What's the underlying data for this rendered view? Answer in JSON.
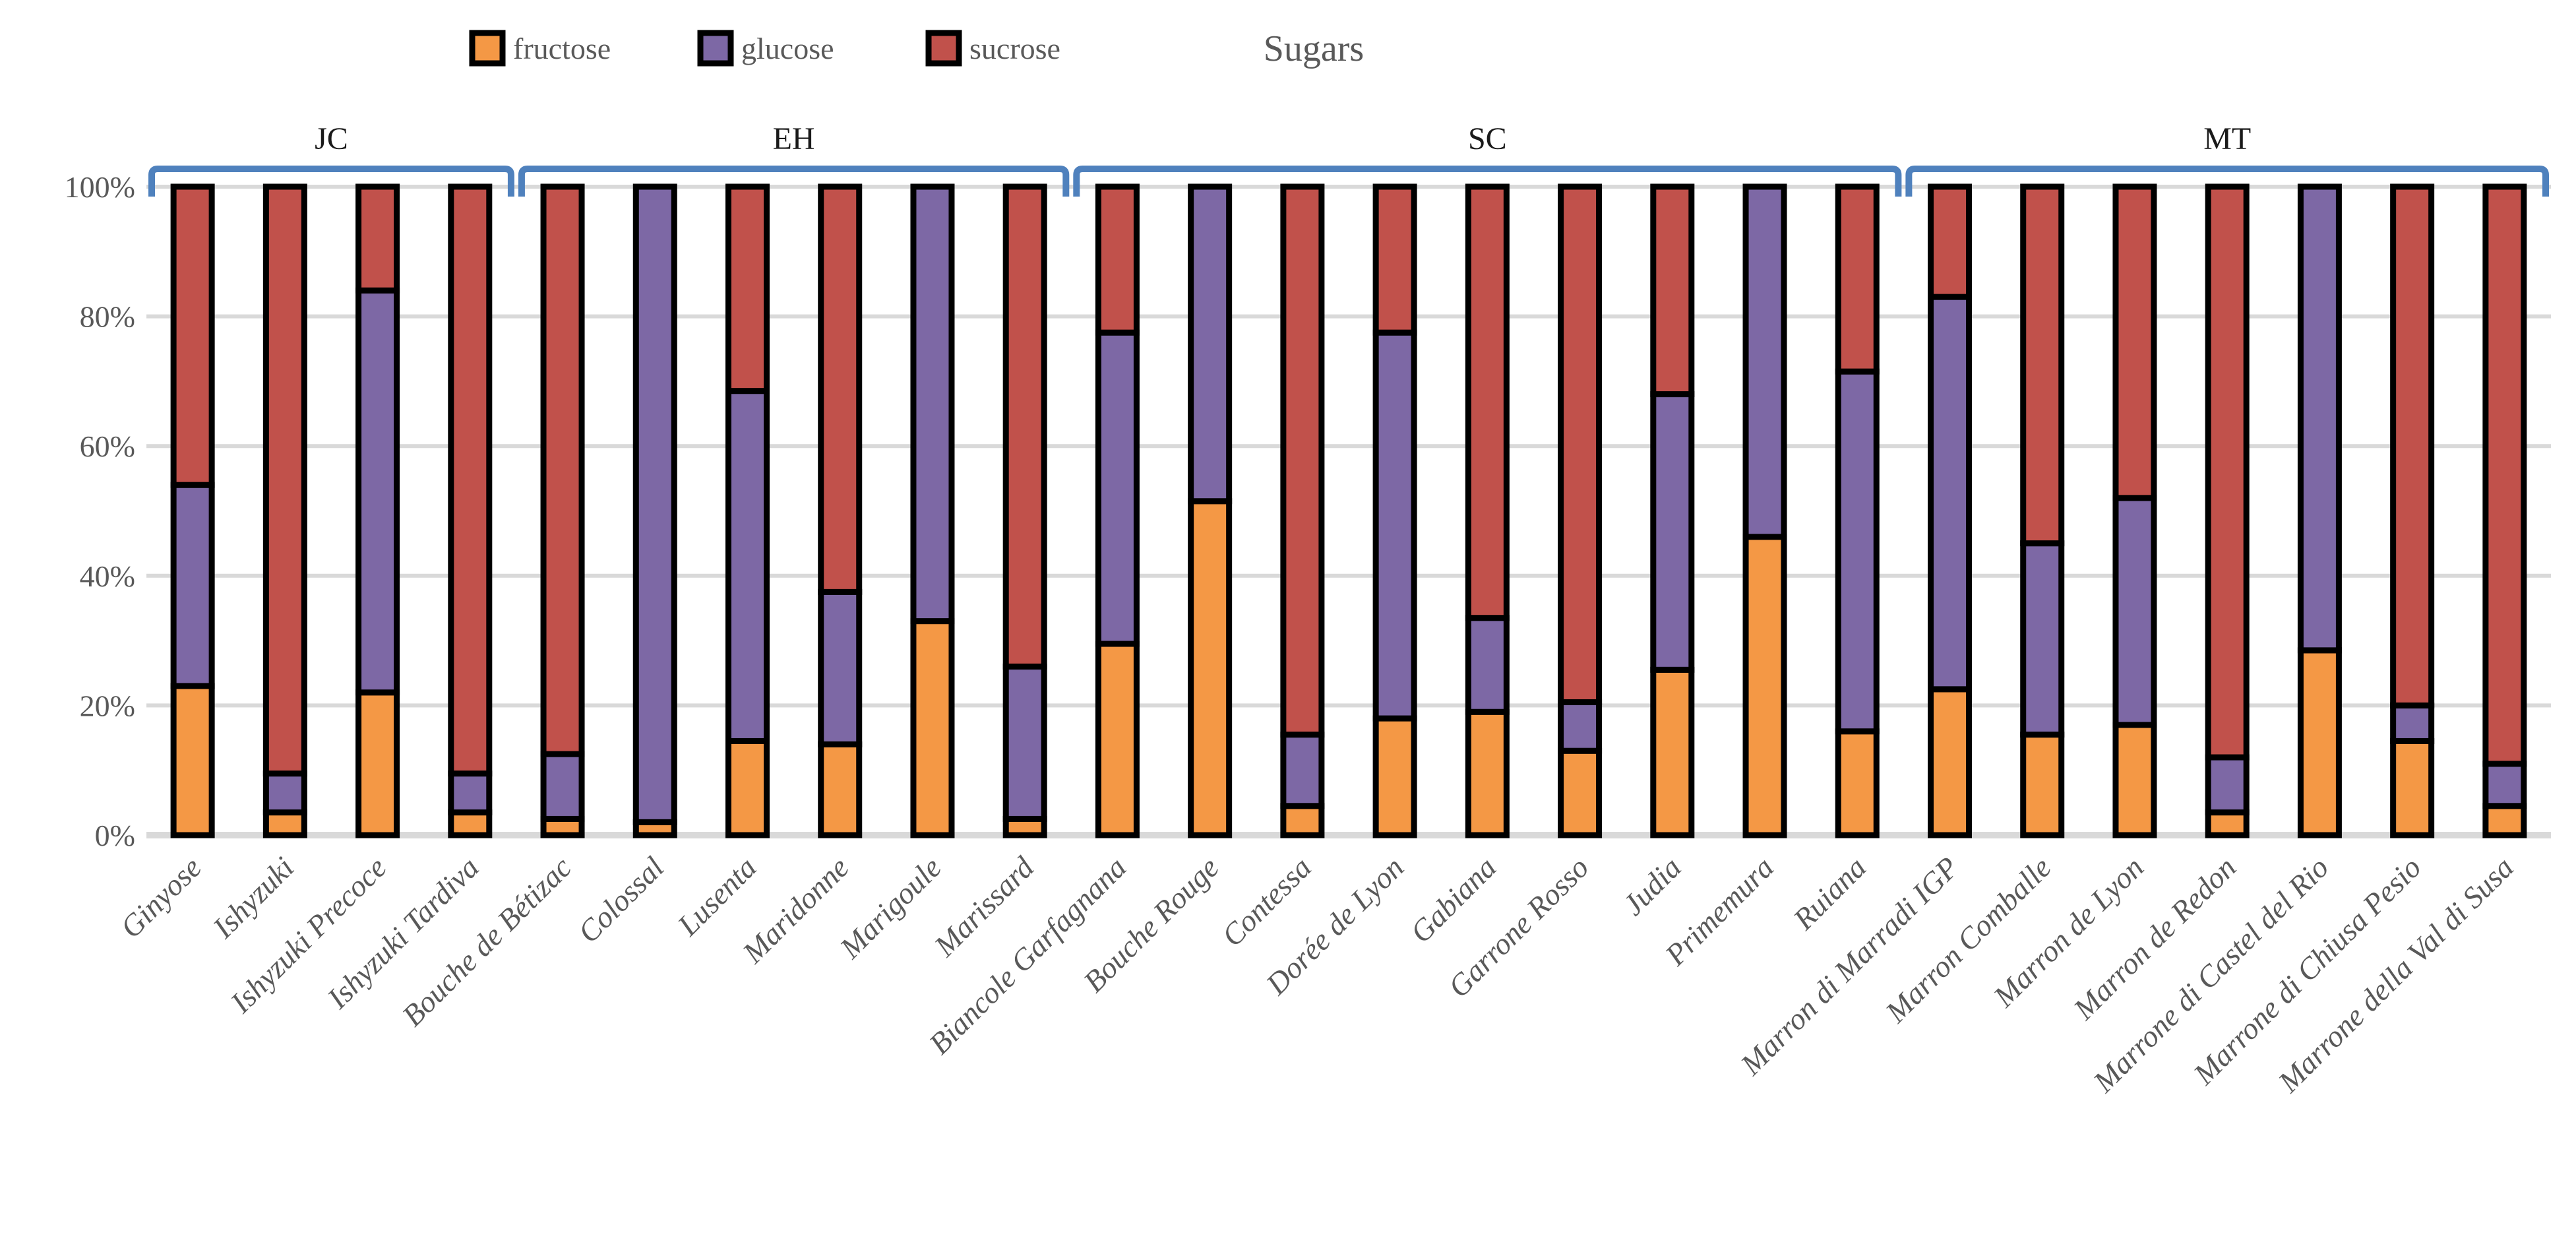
{
  "title": "Sugars",
  "legend": [
    {
      "name": "fructose",
      "color": "#F49845"
    },
    {
      "name": "glucose",
      "color": "#7D68A5"
    },
    {
      "name": "sucrose",
      "color": "#C1514B"
    }
  ],
  "chart_data": {
    "type": "bar",
    "stacked": true,
    "percent": true,
    "title": "Sugars",
    "xlabel": "",
    "ylabel": "",
    "ylim": [
      0,
      100
    ],
    "grid": true,
    "legend_position": "top",
    "y_ticks": [
      "0%",
      "20%",
      "40%",
      "60%",
      "80%",
      "100%"
    ],
    "categories": [
      "Ginyose",
      "Ishyzuki",
      "Ishyzuki Precoce",
      "Ishyzuki Tardiva",
      "Bouche de Bétizac",
      "Colossal",
      "Lusenta",
      "Maridonne",
      "Marigoule",
      "Marissard",
      "Biancole Garfagnana",
      "Bouche Rouge",
      "Contessa",
      "Dorée de Lyon",
      "Gabiana",
      "Garrone Rosso",
      "Judia",
      "Primemura",
      "Ruiana",
      "Marron di Marradi IGP",
      "Marron Comballe",
      "Marron de Lyon",
      "Marron de Redon",
      "Marrone di Castel del Rio",
      "Marrone di Chiusa Pesio",
      "Marrone della Val di Susa"
    ],
    "series": [
      {
        "name": "fructose",
        "color": "#F49845",
        "values": [
          23,
          3.5,
          22,
          3.5,
          2.5,
          2,
          14.5,
          14,
          33,
          2.5,
          29.5,
          51.5,
          4.5,
          18,
          19,
          13,
          25.5,
          46,
          16,
          22.5,
          15.5,
          17,
          3.5,
          28.5,
          14.5,
          4.5
        ]
      },
      {
        "name": "glucose",
        "color": "#7D68A5",
        "values": [
          31,
          6,
          62,
          6,
          10,
          98,
          54,
          23.5,
          67,
          23.5,
          48,
          48.5,
          11,
          59.5,
          14.5,
          7.5,
          42.5,
          54,
          55.5,
          60.5,
          29.5,
          35,
          8.5,
          71.5,
          5.5,
          6.5
        ]
      },
      {
        "name": "sucrose",
        "color": "#C1514B",
        "values": [
          46,
          90.5,
          16,
          90.5,
          87.5,
          0,
          31.5,
          62.5,
          0,
          74,
          22.5,
          0,
          84.5,
          22.5,
          66.5,
          79.5,
          32,
          0,
          28.5,
          17,
          55,
          48,
          88,
          0,
          80,
          89
        ]
      }
    ],
    "groups": [
      {
        "label": "JC",
        "from": 0,
        "to": 3
      },
      {
        "label": "EH",
        "from": 4,
        "to": 9
      },
      {
        "label": "SC",
        "from": 10,
        "to": 18
      },
      {
        "label": "MT",
        "from": 19,
        "to": 25
      }
    ],
    "bracket_color": "#4F81BD",
    "gridline_color": "#D9D9D9",
    "text_color": "#595959",
    "group_label_color": "#1a1a1a",
    "bar_border_color": "#000000"
  }
}
